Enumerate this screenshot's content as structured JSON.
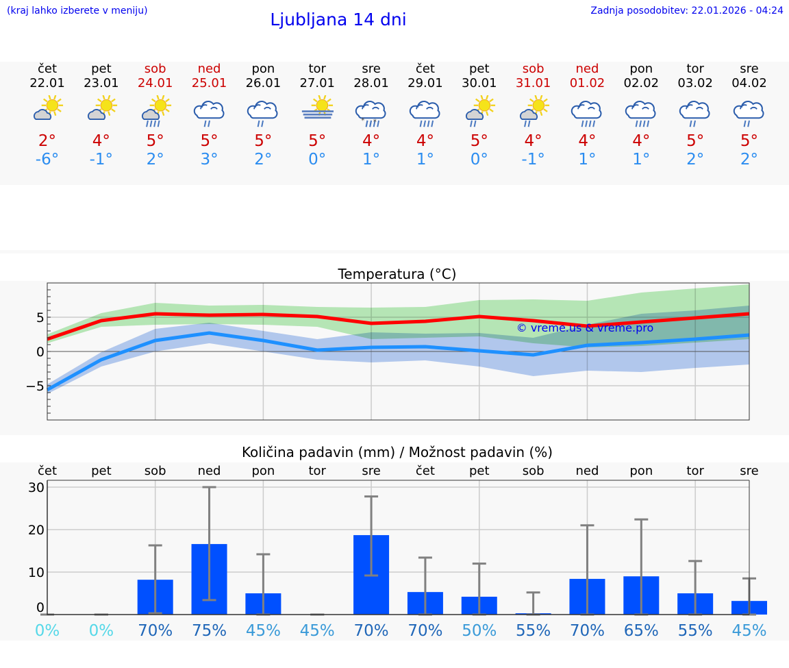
{
  "header": {
    "hint": "(kraj lahko izberete v meniju)",
    "title": "Ljubljana 14 dni",
    "updated": "Zadnja posodobitev: 22.01.2026 - 04:24"
  },
  "days": [
    {
      "name": "čet",
      "date": "22.01",
      "weekend": false,
      "icon": "partly-cloudy-icon",
      "max": "2°",
      "min": "-6°"
    },
    {
      "name": "pet",
      "date": "23.01",
      "weekend": false,
      "icon": "partly-cloudy-icon",
      "max": "4°",
      "min": "-1°"
    },
    {
      "name": "sob",
      "date": "24.01",
      "weekend": true,
      "icon": "partly-cloudy-rain-icon",
      "max": "5°",
      "min": "2°"
    },
    {
      "name": "ned",
      "date": "25.01",
      "weekend": true,
      "icon": "cloudy-light-rain-icon",
      "max": "5°",
      "min": "3°"
    },
    {
      "name": "pon",
      "date": "26.01",
      "weekend": false,
      "icon": "cloudy-light-rain-icon",
      "max": "5°",
      "min": "2°"
    },
    {
      "name": "tor",
      "date": "27.01",
      "weekend": false,
      "icon": "sun-fog-icon",
      "max": "5°",
      "min": "0°"
    },
    {
      "name": "sre",
      "date": "28.01",
      "weekend": false,
      "icon": "cloudy-sleet-icon",
      "max": "4°",
      "min": "1°"
    },
    {
      "name": "čet",
      "date": "29.01",
      "weekend": false,
      "icon": "cloudy-rain-icon",
      "max": "4°",
      "min": "1°"
    },
    {
      "name": "pet",
      "date": "30.01",
      "weekend": false,
      "icon": "partly-cloudy-light-rain-icon",
      "max": "5°",
      "min": "0°"
    },
    {
      "name": "sob",
      "date": "31.01",
      "weekend": true,
      "icon": "partly-cloudy-light-rain-icon",
      "max": "4°",
      "min": "-1°"
    },
    {
      "name": "ned",
      "date": "01.02",
      "weekend": true,
      "icon": "cloudy-rain-icon",
      "max": "4°",
      "min": "1°"
    },
    {
      "name": "pon",
      "date": "02.02",
      "weekend": false,
      "icon": "cloudy-rain-icon",
      "max": "4°",
      "min": "1°"
    },
    {
      "name": "tor",
      "date": "03.02",
      "weekend": false,
      "icon": "cloudy-light-rain-icon",
      "max": "5°",
      "min": "2°"
    },
    {
      "name": "sre",
      "date": "04.02",
      "weekend": false,
      "icon": "cloudy-light-rain-icon",
      "max": "5°",
      "min": "2°"
    }
  ],
  "colors": {
    "max": "#ff0000",
    "min": "#1e90ff",
    "max_band": "#aee9ae",
    "min_band": "#aec8f2",
    "bar": "#0050ff",
    "whisker": "#808080",
    "weekend": "#cc0000"
  },
  "chart_data": [
    {
      "type": "line",
      "title": "Temperatura (°C)",
      "ylim": [
        -10,
        10
      ],
      "yticks": [
        "5",
        "0",
        "−5"
      ],
      "yticks_values": [
        5,
        0,
        -5
      ],
      "grid": true,
      "watermark": "© vreme.us & vreme.pro",
      "series": [
        {
          "values": [
            1.8,
            4.5,
            5.5,
            5.3,
            5.4,
            5.1,
            4.1,
            4.4,
            5.1,
            4.5,
            3.7,
            4.3,
            4.9,
            5.5
          ],
          "band_high": [
            2.5,
            5.6,
            7.1,
            6.7,
            6.8,
            6.5,
            6.4,
            6.5,
            7.5,
            7.6,
            7.4,
            8.6,
            9.2,
            9.8
          ],
          "band_low": [
            1.2,
            3.6,
            3.9,
            4.0,
            3.9,
            3.6,
            1.8,
            2.0,
            2.2,
            1.2,
            0.6,
            0.8,
            1.3,
            1.8
          ]
        },
        {
          "values": [
            -5.6,
            -1.2,
            1.6,
            2.7,
            1.6,
            0.2,
            0.6,
            0.7,
            0.1,
            -0.5,
            0.9,
            1.3,
            1.8,
            2.4
          ],
          "band_high": [
            -4.8,
            -0.1,
            3.3,
            4.2,
            3.0,
            1.8,
            2.8,
            2.6,
            2.7,
            2.0,
            3.9,
            5.5,
            6.0,
            6.7
          ],
          "band_low": [
            -6.2,
            -2.2,
            0.0,
            1.2,
            0.0,
            -1.2,
            -1.6,
            -1.3,
            -2.2,
            -3.6,
            -2.8,
            -3.0,
            -2.4,
            -1.9
          ]
        }
      ]
    },
    {
      "type": "bar",
      "title": "Količina padavin (mm) / Možnost padavin (%)",
      "ylim": [
        0,
        31
      ],
      "yticks": [
        "30",
        "20",
        "10",
        "0"
      ],
      "yticks_values": [
        30,
        20,
        10,
        0
      ],
      "grid": true,
      "categories": [
        "čet",
        "pet",
        "sob",
        "ned",
        "pon",
        "tor",
        "sre",
        "čet",
        "pet",
        "sob",
        "ned",
        "pon",
        "tor",
        "sre"
      ],
      "values": [
        0,
        0,
        8.2,
        16.6,
        5.0,
        0,
        18.7,
        5.3,
        4.2,
        0.3,
        8.4,
        9.0,
        5.0,
        3.2
      ],
      "err_low": [
        0,
        0,
        0.3,
        3.4,
        0,
        0,
        9.2,
        0,
        0,
        0,
        0,
        0,
        0,
        0
      ],
      "err_high": [
        0,
        0,
        16.3,
        30,
        14.2,
        0,
        27.8,
        13.4,
        12.0,
        5.2,
        21.0,
        22.4,
        12.6,
        8.5
      ],
      "probability": [
        "0%",
        "0%",
        "70%",
        "75%",
        "45%",
        "45%",
        "70%",
        "70%",
        "50%",
        "55%",
        "70%",
        "65%",
        "55%",
        "45%"
      ],
      "probability_colors": [
        "#55d8e8",
        "#55d8e8",
        "#1f66b8",
        "#1f66b8",
        "#3a9ad8",
        "#3a9ad8",
        "#1f66b8",
        "#1f66b8",
        "#3a9ad8",
        "#1f66b8",
        "#1f66b8",
        "#1f66b8",
        "#1f66b8",
        "#3a9ad8"
      ]
    }
  ]
}
